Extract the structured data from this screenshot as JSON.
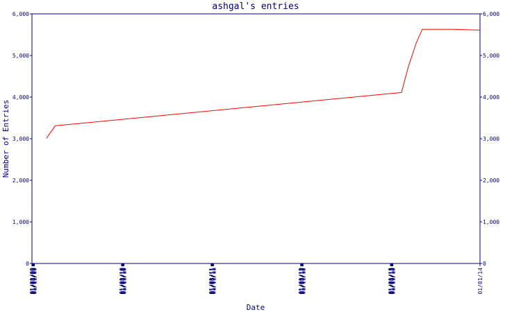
{
  "chart_data": {
    "type": "line",
    "title": "ashgal's entries",
    "xlabel": "Date",
    "ylabel": "Number of Entries",
    "x": [
      "03/01/09",
      "04/06/09",
      "02/15/13",
      "03/15/13",
      "04/16/13",
      "05/11/13",
      "09/07/13",
      "12/31/13"
    ],
    "values": [
      3010,
      3310,
      4110,
      4730,
      5300,
      5630,
      5630,
      5610
    ],
    "color": "#ff0000",
    "xlim": [
      "01/01/09",
      "01/01/14"
    ],
    "xticks": [
      "01/01/09",
      "01/03/09",
      "01/05/09",
      "01/07/09",
      "01/09/09",
      "01/11/09",
      "01/01/10",
      "01/03/10",
      "01/05/10",
      "01/07/10",
      "01/09/10",
      "01/11/10",
      "01/01/11",
      "01/03/11",
      "01/05/11",
      "01/07/11",
      "01/09/11",
      "01/11/11",
      "01/01/12",
      "01/03/12",
      "01/05/12",
      "01/07/12",
      "01/09/12",
      "01/11/12",
      "01/01/13",
      "01/03/13",
      "01/05/13",
      "01/07/13",
      "01/09/13",
      "01/11/13",
      "01/01/14"
    ],
    "ylim": [
      0,
      6000
    ],
    "yticks": [
      0,
      {
        "value": 1000,
        "label": "1,000"
      },
      {
        "value": 2000,
        "label": "2,000"
      },
      {
        "value": 3000,
        "label": "3,000"
      },
      {
        "value": 4000,
        "label": "4,000"
      },
      {
        "value": 5000,
        "label": "5,000"
      },
      {
        "value": 6000,
        "label": "6,000"
      }
    ]
  }
}
